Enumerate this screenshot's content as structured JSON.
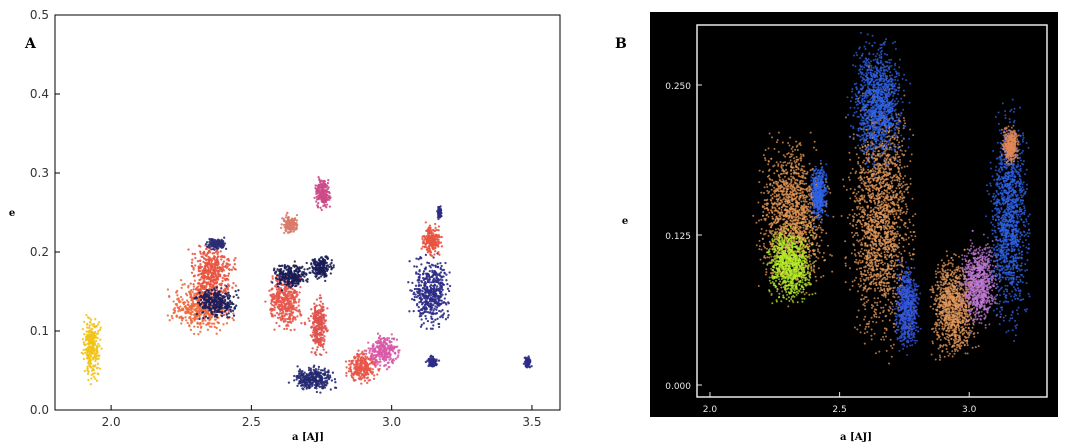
{
  "chart_data": [
    {
      "panel_label": "A",
      "type": "scatter",
      "xlabel": "a [AJ]",
      "ylabel": "e",
      "xlim": [
        1.8,
        3.6
      ],
      "ylim": [
        0.0,
        0.5
      ],
      "xticks": [
        "2.0",
        "2.5",
        "3.0",
        "3.5"
      ],
      "yticks": [
        "0.0",
        "0.1",
        "0.2",
        "0.3",
        "0.4",
        "0.5"
      ],
      "background": "#ffffff",
      "grid": false,
      "clusters": [
        {
          "a": [
            1.89,
            1.97
          ],
          "e": [
            0.03,
            0.13
          ],
          "color": "#f2c318"
        },
        {
          "a": [
            2.18,
            2.46
          ],
          "e": [
            0.09,
            0.17
          ],
          "color": "#ee6a3e"
        },
        {
          "a": [
            2.26,
            2.46
          ],
          "e": [
            0.13,
            0.22
          ],
          "color": "#e85440"
        },
        {
          "a": [
            2.28,
            2.47
          ],
          "e": [
            0.11,
            0.16
          ],
          "color": "#1c1e5c"
        },
        {
          "a": [
            2.33,
            2.42
          ],
          "e": [
            0.2,
            0.22
          ],
          "color": "#2a2c74"
        },
        {
          "a": [
            2.54,
            2.7
          ],
          "e": [
            0.09,
            0.19
          ],
          "color": "#e8564a"
        },
        {
          "a": [
            2.56,
            2.72
          ],
          "e": [
            0.15,
            0.19
          ],
          "color": "#1a1c55"
        },
        {
          "a": [
            2.7,
            2.8
          ],
          "e": [
            0.16,
            0.2
          ],
          "color": "#1a1c55"
        },
        {
          "a": [
            2.6,
            2.68
          ],
          "e": [
            0.22,
            0.25
          ],
          "color": "#d97b6a"
        },
        {
          "a": [
            2.72,
            2.79
          ],
          "e": [
            0.25,
            0.3
          ],
          "color": "#cc4a88"
        },
        {
          "a": [
            2.7,
            2.78
          ],
          "e": [
            0.06,
            0.15
          ],
          "color": "#e0524e"
        },
        {
          "a": [
            2.62,
            2.82
          ],
          "e": [
            0.02,
            0.06
          ],
          "color": "#252870"
        },
        {
          "a": [
            2.82,
            2.97
          ],
          "e": [
            0.03,
            0.08
          ],
          "color": "#e8564a"
        },
        {
          "a": [
            2.9,
            3.04
          ],
          "e": [
            0.05,
            0.1
          ],
          "color": "#d85aa8"
        },
        {
          "a": [
            3.05,
            3.23
          ],
          "e": [
            0.09,
            0.21
          ],
          "color": "#2c2b86"
        },
        {
          "a": [
            3.1,
            3.19
          ],
          "e": [
            0.19,
            0.24
          ],
          "color": "#e85440"
        },
        {
          "a": [
            3.16,
            3.18
          ],
          "e": [
            0.24,
            0.26
          ],
          "color": "#2c2b86"
        },
        {
          "a": [
            3.12,
            3.17
          ],
          "e": [
            0.05,
            0.07
          ],
          "color": "#2c2b86"
        },
        {
          "a": [
            3.47,
            3.5
          ],
          "e": [
            0.05,
            0.07
          ],
          "color": "#2c2b86"
        }
      ]
    },
    {
      "panel_label": "B",
      "type": "scatter",
      "xlabel": "a [AJ]",
      "ylabel": "e",
      "xlim": [
        1.95,
        3.3
      ],
      "ylim": [
        -0.01,
        0.3
      ],
      "xticks": [
        "2.0",
        "2.5",
        "3.0"
      ],
      "yticks": [
        "0.000",
        "0.125",
        "0.250"
      ],
      "background": "#000000",
      "grid": false,
      "clusters": [
        {
          "a": [
            2.15,
            2.49
          ],
          "e": [
            0.06,
            0.22
          ],
          "color": "#e79a57"
        },
        {
          "a": [
            2.2,
            2.42
          ],
          "e": [
            0.06,
            0.14
          ],
          "color": "#b4ef2a"
        },
        {
          "a": [
            2.38,
            2.46
          ],
          "e": [
            0.13,
            0.19
          ],
          "color": "#2f63e8"
        },
        {
          "a": [
            2.5,
            2.82
          ],
          "e": [
            0.01,
            0.27
          ],
          "color": "#e39a5c"
        },
        {
          "a": [
            2.52,
            2.78
          ],
          "e": [
            0.17,
            0.3
          ],
          "color": "#2f63e8"
        },
        {
          "a": [
            2.7,
            2.82
          ],
          "e": [
            0.02,
            0.11
          ],
          "color": "#3458e0"
        },
        {
          "a": [
            2.83,
            3.05
          ],
          "e": [
            0.01,
            0.12
          ],
          "color": "#e39a5c"
        },
        {
          "a": [
            2.95,
            3.13
          ],
          "e": [
            0.04,
            0.13
          ],
          "color": "#c07ad6"
        },
        {
          "a": [
            3.06,
            3.25
          ],
          "e": [
            0.03,
            0.25
          ],
          "color": "#2f63e8"
        },
        {
          "a": [
            3.12,
            3.2
          ],
          "e": [
            0.18,
            0.22
          ],
          "color": "#e28a58"
        }
      ]
    }
  ]
}
